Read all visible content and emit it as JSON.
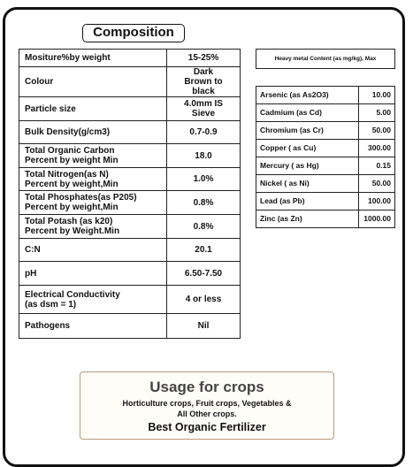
{
  "composition": {
    "title": "Composition",
    "rows": [
      [
        "Mositure%by weight",
        "15-25%"
      ],
      [
        "Colour",
        "Dark\nBrown to black"
      ],
      [
        "Particle size",
        "4.0mm IS Sieve"
      ],
      [
        "Bulk Density(g/cm3)",
        "0.7-0.9"
      ],
      [
        "Total Organic Carbon\nPercent by weight Min",
        "18.0"
      ],
      [
        "Total Nitrogen(as N)\nPercent by weight,Min",
        "1.0%"
      ],
      [
        "Total Phosphates(as P205)\nPercent by weight,Min",
        "0.8%"
      ],
      [
        "Total Potash (as k20)\nPercent by Weight.Min",
        "0.8%"
      ],
      [
        "C:N",
        "20.1"
      ],
      [
        "pH",
        "6.50-7.50"
      ],
      [
        "Electrical Conductivity\n(as dsm = 1)",
        "4 or less"
      ],
      [
        "Pathogens",
        "Nil"
      ]
    ]
  },
  "heavy_metals": {
    "header": "Heavy metal Content (as mg/kg), Max",
    "rows": [
      [
        "Arsenic (as As2O3)",
        "10.00"
      ],
      [
        "Cadmium (as Cd)",
        "5.00"
      ],
      [
        "Chromium (as Cr)",
        "50.00"
      ],
      [
        "Copper ( as Cu)",
        "300.00"
      ],
      [
        "Mercury ( as Hg)",
        "0.15"
      ],
      [
        "Nickel ( as Ni)",
        "50.00"
      ],
      [
        "Lead (as Pb)",
        "100.00"
      ],
      [
        "Zinc (as Zn)",
        "1000.00"
      ]
    ]
  },
  "usage": {
    "title": "Usage for crops",
    "crops": "Horticulture crops, Fruit crops, Vegetables &\nAll Other crops.",
    "tagline": "Best Organic Fertilizer"
  }
}
